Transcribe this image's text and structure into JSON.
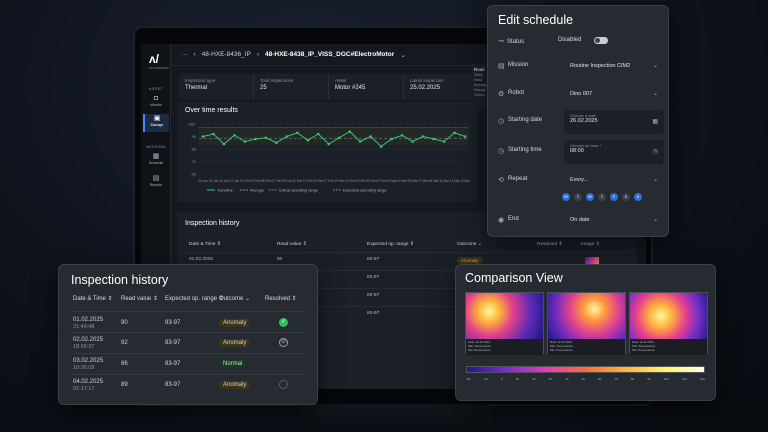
{
  "app": {
    "breadcrumb_prefix": "48-HXE-8436_IP",
    "breadcrumb_current": "48-HXE-8438_IP_VISS_DGC#ElectroMotor",
    "brand_sub": "AUTOMATION"
  },
  "sidebar": {
    "asset_label": "ASSET",
    "mission_label": "MISSION",
    "items": [
      {
        "label": "Monitor",
        "icon": "camera-icon"
      },
      {
        "label": "Manage",
        "icon": "folder-icon"
      },
      {
        "label": "Schedule",
        "icon": "calendar-icon"
      },
      {
        "label": "Reports",
        "icon": "document-icon"
      }
    ]
  },
  "stats": [
    {
      "label": "Inspection type",
      "value": "Thermal"
    },
    {
      "label": "Total inspections",
      "value": "25"
    },
    {
      "label": "Asset",
      "value": "Motor #245"
    },
    {
      "label": "Latest inspection",
      "value": "25.02.2025"
    }
  ],
  "infobox": {
    "title": "Routi",
    "lines": [
      "Data",
      "Hour",
      "Averag",
      "Range",
      "Outco"
    ]
  },
  "chart": {
    "title": "Over time results",
    "legend": [
      "Trendline",
      "Average",
      "Critical operating range",
      "Expected operating range"
    ]
  },
  "chart_data": {
    "type": "line",
    "title": "Over time results",
    "categories": [
      "20 Jan",
      "21 Jan",
      "24 Jan",
      "27 Jan",
      "01 Feb",
      "03 Feb",
      "05 Feb",
      "07 Feb",
      "09 Feb",
      "11 Feb",
      "13 Feb",
      "15 Feb",
      "17 Feb",
      "19 Feb",
      "21 Feb",
      "23 Feb",
      "25 Feb",
      "27 Feb",
      "01 Mar",
      "03 Mar",
      "05 Mar",
      "07 Mar",
      "09 Mar",
      "11 Mar",
      "13 Mar",
      "15 Mar"
    ],
    "series": [
      {
        "name": "Trendline",
        "values": [
          90,
          92,
          84,
          91,
          86,
          88,
          89,
          85,
          90,
          93,
          87,
          92,
          84,
          89,
          94,
          86,
          90,
          82,
          88,
          91,
          86,
          90,
          88,
          86,
          93,
          90
        ]
      }
    ],
    "ylim": [
      60,
      100
    ],
    "yticks": [
      "100°",
      "90",
      "80",
      "70",
      "60"
    ]
  },
  "bg_table": {
    "title": "Inspection history",
    "headers": [
      "Date & Time ⇕",
      "Read value ⇕",
      "Expected op. range ⇕",
      "Outcome ⌄",
      "Resolved ⇕",
      "Image ⇕"
    ],
    "rows": [
      {
        "date": "01.02.2025",
        "value": "90",
        "range": "83-97",
        "outcome": "Anomaly"
      },
      {
        "date": "",
        "value": "",
        "range": "83-97",
        "outcome": ""
      },
      {
        "date": "",
        "value": "",
        "range": "83-97",
        "outcome": ""
      },
      {
        "date": "",
        "value": "",
        "range": "83-97",
        "outcome": ""
      }
    ]
  },
  "history": {
    "title": "Inspection history",
    "headers": [
      "Date & Time ⇕",
      "Read value ⇕",
      "Expected op. range ⇕",
      "Outcome ⌄",
      "Resolved ⇕"
    ],
    "rows": [
      {
        "date": "01.02.2025",
        "time": "21:49:48",
        "value": "90",
        "range": "83-97",
        "outcome": "Anomaly",
        "resolved": "done"
      },
      {
        "date": "02.02.2025",
        "time": "18:65:37",
        "value": "92",
        "range": "83-97",
        "outcome": "Anomaly",
        "resolved": "no"
      },
      {
        "date": "03.02.2025",
        "time": "10:36:08",
        "value": "86",
        "range": "83-97",
        "outcome": "Normal",
        "resolved": "empty"
      },
      {
        "date": "04.02.2025",
        "time": "02:17:17",
        "value": "89",
        "range": "83-97",
        "outcome": "Anomaly",
        "resolved": "empty"
      }
    ]
  },
  "schedule": {
    "title": "Edit schedule",
    "status_label": "Status",
    "status_value": "Disabled",
    "mission_label": "Mission",
    "mission_value": "Routine Inspection CIM2",
    "robot_label": "Robot",
    "robot_value": "Dino 007",
    "start_date_label": "Starting date",
    "start_date_placeholder": "Choose a date",
    "start_date_value": "26.02.2025",
    "start_time_label": "Starting time",
    "start_time_placeholder": "Choose an hour *",
    "start_time_value": "08:00",
    "repeat_label": "Repeat",
    "repeat_value": "Every...",
    "days": [
      {
        "d": "M",
        "on": true
      },
      {
        "d": "T",
        "on": false
      },
      {
        "d": "W",
        "on": true
      },
      {
        "d": "T",
        "on": false
      },
      {
        "d": "F",
        "on": true
      },
      {
        "d": "S",
        "on": false
      },
      {
        "d": "S",
        "on": true
      }
    ],
    "end_label": "End",
    "end_value": "On date"
  },
  "comparison": {
    "title": "Comparison View",
    "thumbs": [
      {
        "date": "12.11.2024",
        "label_a": "Date",
        "label_b": "Max Temperature",
        "label_c": "Min Temperature"
      },
      {
        "date": "12.11.2024",
        "label_a": "Date",
        "label_b": "Max Temperature",
        "label_c": "Min Temperature"
      },
      {
        "date": "12.11.2024",
        "label_a": "Date",
        "label_b": "Max Temperature",
        "label_c": "Min Temperature"
      }
    ],
    "scale_ticks": [
      "-20",
      "-10",
      "0",
      "10",
      "20",
      "30",
      "40",
      "50",
      "60",
      "70",
      "80",
      "90",
      "100",
      "110",
      "120"
    ]
  },
  "colors": {
    "accent": "#2f6fd6",
    "trend": "#3fc46c",
    "anomaly": "#d9b13b",
    "normal": "#3fbf6b"
  }
}
